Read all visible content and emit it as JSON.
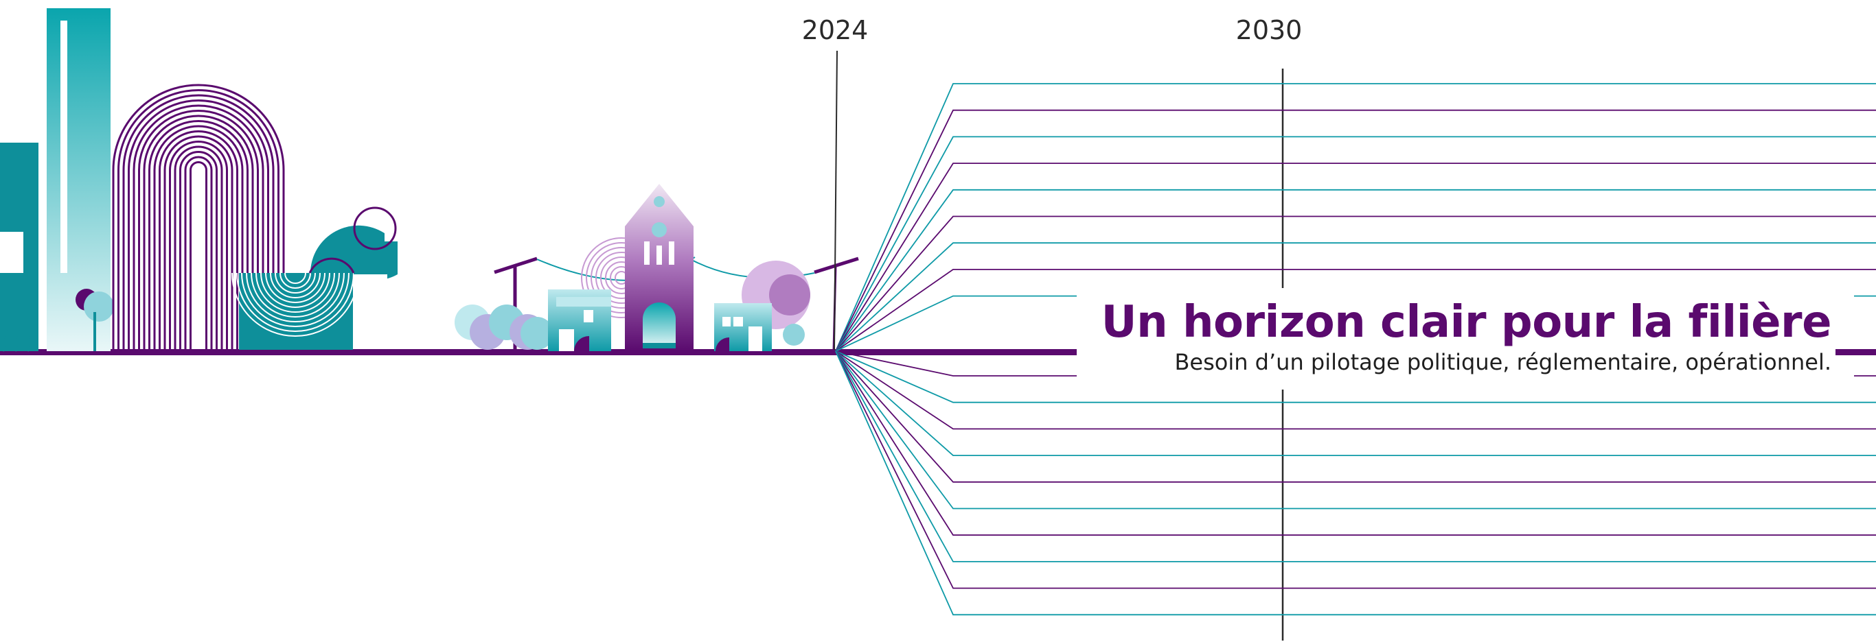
{
  "timeline": {
    "year_start": "2024",
    "year_mid": "2030"
  },
  "heading": {
    "title": "Un horizon clair pour la filière",
    "subtitle": "Besoin d’un pilotage politique, réglementaire, opérationnel."
  },
  "colors": {
    "purple": "#5a0a6e",
    "teal": "#0e9aa7",
    "light_teal": "#8fd3dc",
    "dark": "#2a2a2a"
  },
  "icons": [
    "factory-chimney-icon",
    "arch-building-icon",
    "pipe-tank-icon",
    "street-light-icon",
    "house-icon",
    "church-icon",
    "tree-icon"
  ]
}
